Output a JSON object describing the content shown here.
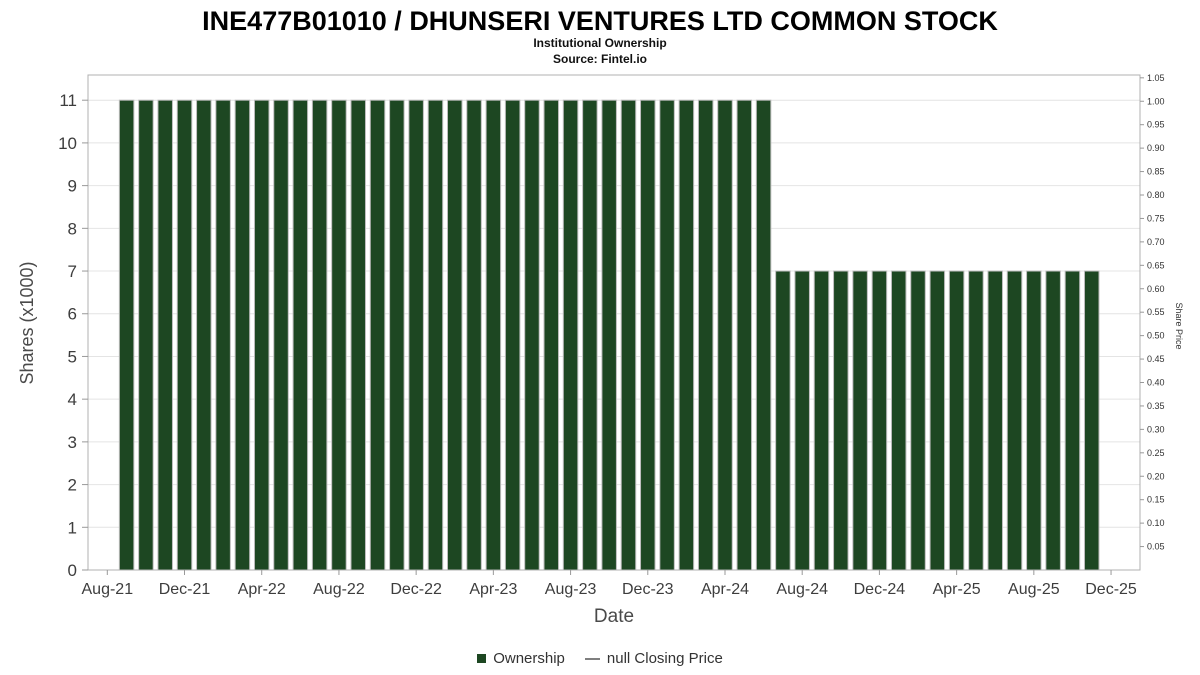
{
  "chart_data": {
    "type": "bar",
    "title": "INE477B01010 / DHUNSERI VENTURES LTD COMMON STOCK",
    "subtitle": "Institutional Ownership",
    "source": "Source: Fintel.io",
    "xlabel": "Date",
    "ylabel_left": "Shares (x1000)",
    "ylabel_right": "Share Price",
    "bar_color": "#1d4722",
    "bar_edge_color": "#bdbdbd",
    "grid": true,
    "legend_position": "bottom",
    "categories": [
      "Sep-21",
      "Oct-21",
      "Nov-21",
      "Dec-21",
      "Jan-22",
      "Feb-22",
      "Mar-22",
      "Apr-22",
      "May-22",
      "Jun-22",
      "Jul-22",
      "Aug-22",
      "Sep-22",
      "Oct-22",
      "Nov-22",
      "Dec-22",
      "Jan-23",
      "Feb-23",
      "Mar-23",
      "Apr-23",
      "May-23",
      "Jun-23",
      "Jul-23",
      "Aug-23",
      "Sep-23",
      "Oct-23",
      "Nov-23",
      "Dec-23",
      "Jan-24",
      "Feb-24",
      "Mar-24",
      "Apr-24",
      "May-24",
      "Jun-24",
      "Jul-24",
      "Aug-24",
      "Sep-24",
      "Oct-24",
      "Nov-24",
      "Dec-24",
      "Jan-25",
      "Feb-25",
      "Mar-25",
      "Apr-25",
      "May-25",
      "Jun-25",
      "Jul-25",
      "Aug-25",
      "Sep-25",
      "Oct-25",
      "Nov-25"
    ],
    "values": [
      11,
      11,
      11,
      11,
      11,
      11,
      11,
      11,
      11,
      11,
      11,
      11,
      11,
      11,
      11,
      11,
      11,
      11,
      11,
      11,
      11,
      11,
      11,
      11,
      11,
      11,
      11,
      11,
      11,
      11,
      11,
      11,
      11,
      11,
      7,
      7,
      7,
      7,
      7,
      7,
      7,
      7,
      7,
      7,
      7,
      7,
      7,
      7,
      7,
      7,
      7
    ],
    "x_tick_labels": [
      "Aug-21",
      "Dec-21",
      "Apr-22",
      "Aug-22",
      "Dec-22",
      "Apr-23",
      "Aug-23",
      "Dec-23",
      "Apr-24",
      "Aug-24",
      "Dec-24",
      "Apr-25",
      "Aug-25",
      "Dec-25"
    ],
    "y_left_ticks": [
      0,
      1,
      2,
      3,
      4,
      5,
      6,
      7,
      8,
      9,
      10,
      11
    ],
    "y_left_max": 11.59,
    "y_right_tick_labels": [
      "0.05",
      "0.10",
      "0.15",
      "0.20",
      "0.25",
      "0.30",
      "0.35",
      "0.40",
      "0.45",
      "0.50",
      "0.55",
      "0.60",
      "0.65",
      "0.70",
      "0.75",
      "0.80",
      "0.85",
      "0.90",
      "0.95",
      "1.00",
      "1.05"
    ],
    "y_right_max": 1.056,
    "legend": [
      {
        "label": "Ownership",
        "type": "square",
        "color": "#1d4722"
      },
      {
        "label": "null Closing Price",
        "type": "line",
        "color": "#7f7f7f"
      }
    ]
  }
}
